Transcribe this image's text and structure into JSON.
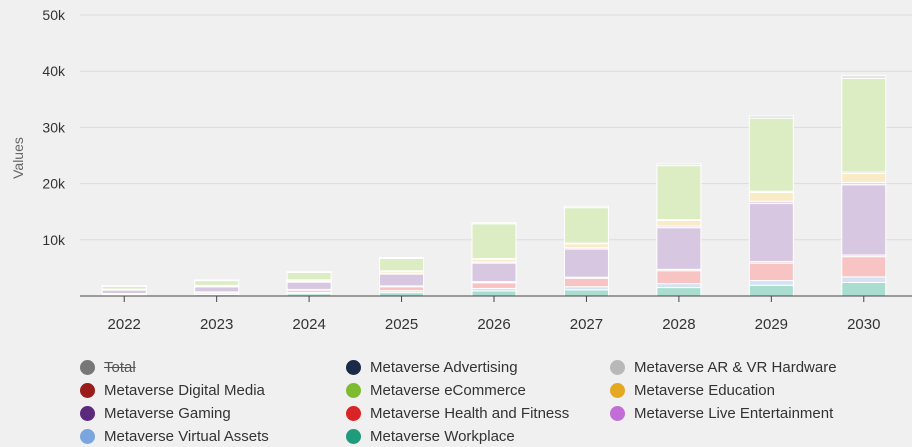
{
  "chart_data": {
    "type": "bar",
    "stacked": true,
    "title": "",
    "xlabel": "",
    "ylabel": "Values",
    "ylim": [
      0,
      50000
    ],
    "yticks": [
      10000,
      20000,
      30000,
      40000,
      50000
    ],
    "ytick_labels": [
      "10k",
      "20k",
      "30k",
      "40k",
      "50k"
    ],
    "grid": true,
    "legend_position": "bottom",
    "categories": [
      "2022",
      "2023",
      "2024",
      "2025",
      "2026",
      "2027",
      "2028",
      "2029",
      "2030"
    ],
    "series": [
      {
        "name": "Metaverse Workplace",
        "color": "#a8ddd0",
        "values": [
          150,
          250,
          400,
          600,
          900,
          1100,
          1500,
          1900,
          2400
        ]
      },
      {
        "name": "Metaverse Virtual Assets",
        "color": "#d6e2f4",
        "values": [
          100,
          150,
          250,
          350,
          450,
          550,
          700,
          850,
          1000
        ]
      },
      {
        "name": "Metaverse Health and Fitness",
        "color": "#f7c3c3",
        "values": [
          150,
          250,
          400,
          700,
          1000,
          1500,
          2300,
          3100,
          3600
        ]
      },
      {
        "name": "Metaverse Digital Media",
        "color": "#f2d6d6",
        "values": [
          50,
          80,
          120,
          150,
          200,
          200,
          250,
          300,
          300
        ]
      },
      {
        "name": "Metaverse Gaming",
        "color": "#d7c7e0",
        "values": [
          600,
          900,
          1300,
          2100,
          3300,
          5000,
          7400,
          10300,
          12500
        ]
      },
      {
        "name": "Metaverse Live Entertainment",
        "color": "#ead4f2",
        "values": [
          50,
          70,
          100,
          150,
          200,
          250,
          300,
          400,
          400
        ]
      },
      {
        "name": "Metaverse Education",
        "color": "#faebc8",
        "values": [
          100,
          150,
          250,
          350,
          500,
          700,
          1000,
          1600,
          1600
        ]
      },
      {
        "name": "Metaverse Advertising",
        "color": "#cfd3dc",
        "values": [
          30,
          40,
          60,
          80,
          100,
          120,
          150,
          200,
          250
        ]
      },
      {
        "name": "Metaverse eCommerce",
        "color": "#dcedc4",
        "values": [
          500,
          850,
          1300,
          2200,
          6200,
          6300,
          9600,
          13000,
          16700
        ]
      },
      {
        "name": "Metaverse AR & VR Hardware",
        "color": "#dcdcdc",
        "values": [
          100,
          120,
          150,
          180,
          200,
          250,
          300,
          400,
          450
        ]
      }
    ]
  },
  "legend": {
    "items": [
      {
        "label": "Total",
        "color": "#777777",
        "hidden": true
      },
      {
        "label": "Metaverse Advertising",
        "color": "#1b2a49",
        "hidden": false
      },
      {
        "label": "Metaverse AR & VR Hardware",
        "color": "#b8b8b8",
        "hidden": false
      },
      {
        "label": "Metaverse Digital Media",
        "color": "#9b1b1b",
        "hidden": false
      },
      {
        "label": "Metaverse eCommerce",
        "color": "#7dbb2f",
        "hidden": false
      },
      {
        "label": "Metaverse Education",
        "color": "#e5a823",
        "hidden": false
      },
      {
        "label": "Metaverse Gaming",
        "color": "#5b2a7e",
        "hidden": false
      },
      {
        "label": "Metaverse Health and Fitness",
        "color": "#d82424",
        "hidden": false
      },
      {
        "label": "Metaverse Live Entertainment",
        "color": "#c26ed6",
        "hidden": false
      },
      {
        "label": "Metaverse Virtual Assets",
        "color": "#7aa6e0",
        "hidden": false
      },
      {
        "label": "Metaverse Workplace",
        "color": "#1f9c7c",
        "hidden": false
      }
    ]
  }
}
